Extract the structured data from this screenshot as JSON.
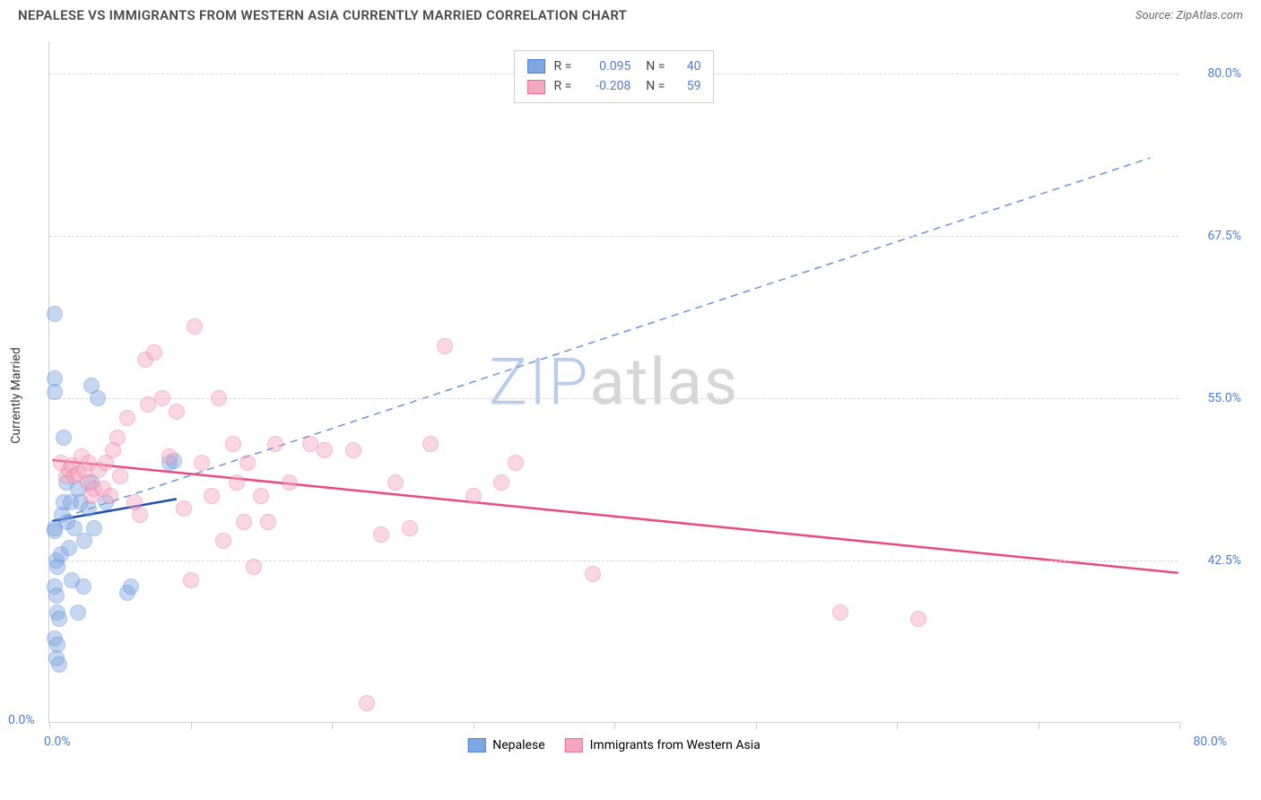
{
  "header": {
    "title": "NEPALESE VS IMMIGRANTS FROM WESTERN ASIA CURRENTLY MARRIED CORRELATION CHART",
    "source": "Source: ZipAtlas.com"
  },
  "chart": {
    "type": "scatter",
    "ylabel": "Currently Married",
    "background_color": "#ffffff",
    "grid_color": "#d7d7d7",
    "axis_color": "#cfcfcf",
    "label_fontsize": 14,
    "title_fontsize": 15,
    "x_domain": [
      0,
      80
    ],
    "y_domain": [
      30,
      82.5
    ],
    "y_ticks": [
      42.5,
      55.0,
      67.5,
      80.0
    ],
    "y_tick_labels": [
      "42.5%",
      "55.0%",
      "67.5%",
      "80.0%"
    ],
    "x_ticks": [
      0,
      10,
      20,
      30,
      40,
      50,
      60,
      70,
      80
    ],
    "x_min_label": "0.0%",
    "x_max_label": "80.0%",
    "y_min_label": "0.0%",
    "tick_label_color": "#4d7dd6",
    "point_radius": 9,
    "point_opacity": 0.45,
    "watermark": {
      "text_zip": "ZIP",
      "text_atlas": "atlas",
      "color_zip": "#b9ccec",
      "color_atlas": "#d6d6d6"
    },
    "series": [
      {
        "name": "Nepalese",
        "fill": "#7fa8e2",
        "stroke": "#4d7dd6",
        "R": "0.095",
        "N": "40",
        "trend": {
          "dashed": false,
          "color": "#1f4fb0",
          "width": 2.5,
          "x1": 0.2,
          "y1": 45.5,
          "x2": 9,
          "y2": 47.2
        },
        "extrapolate": {
          "dashed": true,
          "color": "#6a94db",
          "width": 1.5,
          "x1": 0.2,
          "y1": 45.5,
          "x2": 78,
          "y2": 73.5
        },
        "points": [
          [
            0.4,
            61.5
          ],
          [
            0.4,
            56.5
          ],
          [
            0.4,
            55.5
          ],
          [
            0.4,
            45
          ],
          [
            0.4,
            44.8
          ],
          [
            0.5,
            42.5
          ],
          [
            0.6,
            42
          ],
          [
            0.4,
            40.5
          ],
          [
            0.5,
            39.8
          ],
          [
            0.6,
            38.5
          ],
          [
            0.7,
            38
          ],
          [
            0.4,
            36.5
          ],
          [
            0.6,
            36
          ],
          [
            0.5,
            35
          ],
          [
            0.7,
            34.5
          ],
          [
            0.8,
            43
          ],
          [
            0.9,
            46
          ],
          [
            1.0,
            47
          ],
          [
            1.2,
            48.5
          ],
          [
            1.0,
            52
          ],
          [
            1.3,
            45.5
          ],
          [
            1.5,
            47
          ],
          [
            1.4,
            43.5
          ],
          [
            1.6,
            41
          ],
          [
            1.8,
            45
          ],
          [
            2.0,
            48
          ],
          [
            2.2,
            47
          ],
          [
            2.5,
            44
          ],
          [
            2.4,
            40.5
          ],
          [
            2.0,
            38.5
          ],
          [
            2.8,
            46.5
          ],
          [
            3.0,
            48.5
          ],
          [
            3.2,
            45
          ],
          [
            3.0,
            56
          ],
          [
            3.4,
            55
          ],
          [
            4.0,
            47
          ],
          [
            5.5,
            40
          ],
          [
            5.8,
            40.5
          ],
          [
            8.5,
            50
          ],
          [
            8.8,
            50.2
          ]
        ]
      },
      {
        "name": "Immigrants from Western Asia",
        "fill": "#f4a8bf",
        "stroke": "#e86b95",
        "R": "-0.208",
        "N": "59",
        "trend": {
          "dashed": false,
          "color": "#e84b80",
          "width": 2.5,
          "x1": 0.2,
          "y1": 50.2,
          "x2": 80,
          "y2": 41.5
        },
        "points": [
          [
            0.8,
            50
          ],
          [
            1.2,
            49
          ],
          [
            1.4,
            49.5
          ],
          [
            1.6,
            49.8
          ],
          [
            1.8,
            49
          ],
          [
            2.0,
            49.2
          ],
          [
            2.3,
            50.5
          ],
          [
            2.5,
            49.5
          ],
          [
            2.7,
            48.5
          ],
          [
            2.8,
            50
          ],
          [
            3.0,
            47.5
          ],
          [
            3.2,
            48
          ],
          [
            3.5,
            49.5
          ],
          [
            3.8,
            48
          ],
          [
            4.0,
            50
          ],
          [
            4.3,
            47.5
          ],
          [
            4.5,
            51
          ],
          [
            4.8,
            52
          ],
          [
            5.0,
            49
          ],
          [
            5.5,
            53.5
          ],
          [
            6.0,
            47
          ],
          [
            6.4,
            46
          ],
          [
            6.8,
            58
          ],
          [
            7.0,
            54.5
          ],
          [
            7.4,
            58.5
          ],
          [
            8.0,
            55
          ],
          [
            8.5,
            50.5
          ],
          [
            9.0,
            54
          ],
          [
            9.5,
            46.5
          ],
          [
            10.0,
            41
          ],
          [
            10.3,
            60.5
          ],
          [
            10.8,
            50
          ],
          [
            11.5,
            47.5
          ],
          [
            12.0,
            55
          ],
          [
            12.3,
            44
          ],
          [
            13.0,
            51.5
          ],
          [
            13.3,
            48.5
          ],
          [
            13.8,
            45.5
          ],
          [
            14.0,
            50
          ],
          [
            14.5,
            42
          ],
          [
            15.0,
            47.5
          ],
          [
            15.5,
            45.5
          ],
          [
            16.0,
            51.5
          ],
          [
            17.0,
            48.5
          ],
          [
            18.5,
            51.5
          ],
          [
            19.5,
            51
          ],
          [
            21.5,
            51
          ],
          [
            22.5,
            31.5
          ],
          [
            23.5,
            44.5
          ],
          [
            24.5,
            48.5
          ],
          [
            25.5,
            45
          ],
          [
            27.0,
            51.5
          ],
          [
            28.0,
            59
          ],
          [
            30.0,
            47.5
          ],
          [
            32.0,
            48.5
          ],
          [
            33.0,
            50
          ],
          [
            38.5,
            41.5
          ],
          [
            56.0,
            38.5
          ],
          [
            61.5,
            38
          ]
        ]
      }
    ],
    "legend_bottom": [
      {
        "label": "Nepalese",
        "fill": "#7fa8e2",
        "stroke": "#4d7dd6"
      },
      {
        "label": "Immigrants from Western Asia",
        "fill": "#f4a8bf",
        "stroke": "#e86b95"
      }
    ]
  }
}
